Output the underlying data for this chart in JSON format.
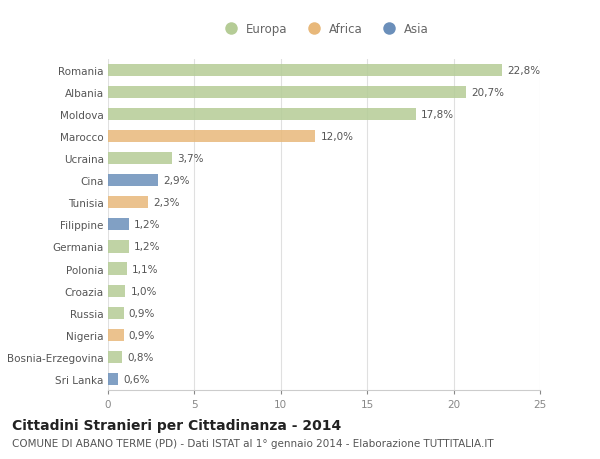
{
  "countries": [
    "Romania",
    "Albania",
    "Moldova",
    "Marocco",
    "Ucraina",
    "Cina",
    "Tunisia",
    "Filippine",
    "Germania",
    "Polonia",
    "Croazia",
    "Russia",
    "Nigeria",
    "Bosnia-Erzegovina",
    "Sri Lanka"
  ],
  "values": [
    22.8,
    20.7,
    17.8,
    12.0,
    3.7,
    2.9,
    2.3,
    1.2,
    1.2,
    1.1,
    1.0,
    0.9,
    0.9,
    0.8,
    0.6
  ],
  "continents": [
    "Europa",
    "Europa",
    "Europa",
    "Africa",
    "Europa",
    "Asia",
    "Africa",
    "Asia",
    "Europa",
    "Europa",
    "Europa",
    "Europa",
    "Africa",
    "Europa",
    "Asia"
  ],
  "labels": [
    "22,8%",
    "20,7%",
    "17,8%",
    "12,0%",
    "3,7%",
    "2,9%",
    "2,3%",
    "1,2%",
    "1,2%",
    "1,1%",
    "1,0%",
    "0,9%",
    "0,9%",
    "0,8%",
    "0,6%"
  ],
  "colors": {
    "Europa": "#b5cc96",
    "Africa": "#e8b87a",
    "Asia": "#6b8fba"
  },
  "xlim": [
    0,
    25
  ],
  "xticks": [
    0,
    5,
    10,
    15,
    20,
    25
  ],
  "title": "Cittadini Stranieri per Cittadinanza - 2014",
  "subtitle": "COMUNE DI ABANO TERME (PD) - Dati ISTAT al 1° gennaio 2014 - Elaborazione TUTTITALIA.IT",
  "background_color": "#ffffff",
  "grid_color": "#e0e0e0",
  "bar_height": 0.55,
  "title_fontsize": 10,
  "subtitle_fontsize": 7.5,
  "label_fontsize": 7.5,
  "tick_fontsize": 7.5,
  "legend_fontsize": 8.5
}
